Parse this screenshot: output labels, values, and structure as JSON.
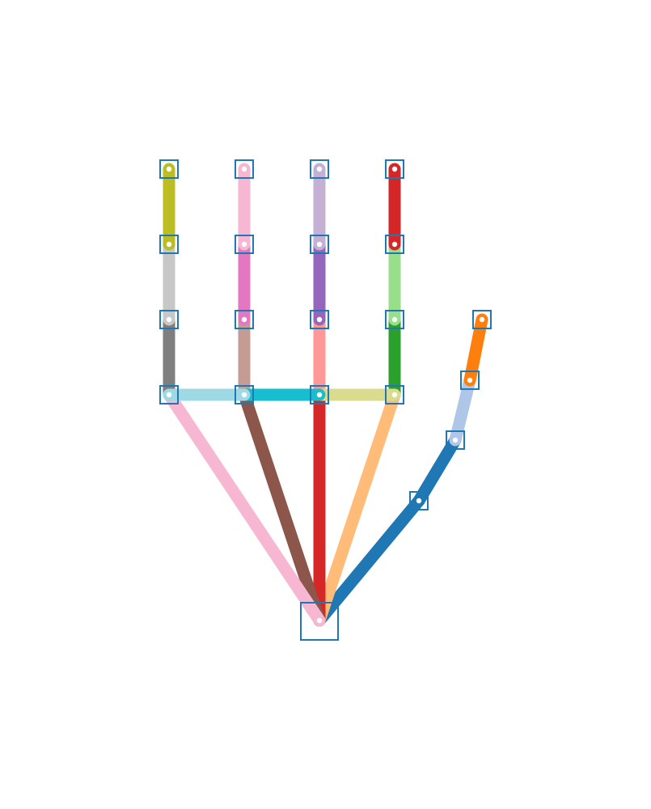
{
  "diagram": {
    "type": "hand-skeleton",
    "keypoints": [
      {
        "id": 0,
        "name": "wrist"
      },
      {
        "id": 1,
        "name": "thumb-cmc"
      },
      {
        "id": 2,
        "name": "thumb-mcp"
      },
      {
        "id": 3,
        "name": "thumb-ip"
      },
      {
        "id": 4,
        "name": "thumb-tip"
      },
      {
        "id": 5,
        "name": "index-mcp"
      },
      {
        "id": 6,
        "name": "index-pip"
      },
      {
        "id": 7,
        "name": "index-dip"
      },
      {
        "id": 8,
        "name": "index-tip"
      },
      {
        "id": 9,
        "name": "middle-mcp"
      },
      {
        "id": 10,
        "name": "middle-pip"
      },
      {
        "id": 11,
        "name": "middle-dip"
      },
      {
        "id": 12,
        "name": "middle-tip"
      },
      {
        "id": 13,
        "name": "ring-mcp"
      },
      {
        "id": 14,
        "name": "ring-pip"
      },
      {
        "id": 15,
        "name": "ring-dip"
      },
      {
        "id": 16,
        "name": "ring-tip"
      },
      {
        "id": 17,
        "name": "pinky-mcp"
      },
      {
        "id": 18,
        "name": "pinky-pip"
      },
      {
        "id": 19,
        "name": "pinky-dip"
      },
      {
        "id": 20,
        "name": "pinky-tip"
      }
    ],
    "bones": [
      {
        "from": 0,
        "to": 1,
        "color": "#1f77b4"
      },
      {
        "from": 1,
        "to": 2,
        "color": "#1f77b4"
      },
      {
        "from": 2,
        "to": 3,
        "color": "#aec7e8"
      },
      {
        "from": 3,
        "to": 4,
        "color": "#ff7f0e"
      },
      {
        "from": 0,
        "to": 5,
        "color": "#ffbb78"
      },
      {
        "from": 5,
        "to": 6,
        "color": "#2ca02c"
      },
      {
        "from": 6,
        "to": 7,
        "color": "#98df8a"
      },
      {
        "from": 7,
        "to": 8,
        "color": "#d62728"
      },
      {
        "from": 0,
        "to": 9,
        "color": "#d62728"
      },
      {
        "from": 9,
        "to": 10,
        "color": "#ff9896"
      },
      {
        "from": 10,
        "to": 11,
        "color": "#9467bd"
      },
      {
        "from": 11,
        "to": 12,
        "color": "#c5b0d5"
      },
      {
        "from": 0,
        "to": 13,
        "color": "#8c564b"
      },
      {
        "from": 13,
        "to": 14,
        "color": "#c49c94"
      },
      {
        "from": 14,
        "to": 15,
        "color": "#e377c2"
      },
      {
        "from": 15,
        "to": 16,
        "color": "#f7b6d2"
      },
      {
        "from": 0,
        "to": 17,
        "color": "#f7b6d2"
      },
      {
        "from": 17,
        "to": 18,
        "color": "#7f7f7f"
      },
      {
        "from": 18,
        "to": 19,
        "color": "#c7c7c7"
      },
      {
        "from": 19,
        "to": 20,
        "color": "#bcbd22"
      },
      {
        "from": 5,
        "to": 9,
        "color": "#dbdb8d"
      },
      {
        "from": 9,
        "to": 13,
        "color": "#17becf"
      },
      {
        "from": 13,
        "to": 17,
        "color": "#9edae5"
      }
    ],
    "box_color": "#1f77b4",
    "point_fill": "#ffffff"
  }
}
